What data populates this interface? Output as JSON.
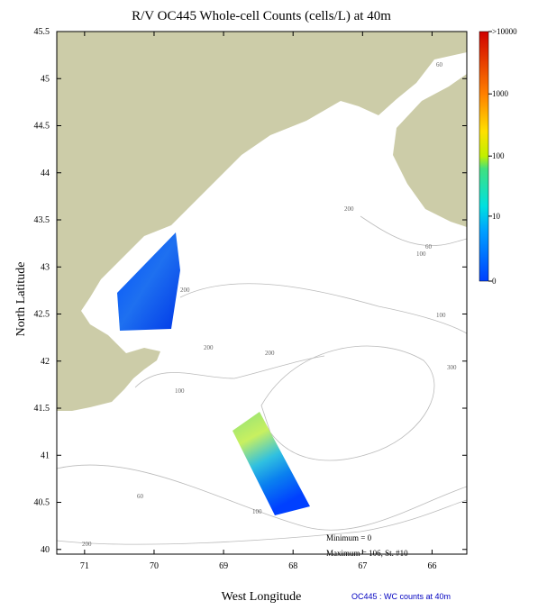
{
  "chart_data": {
    "type": "map",
    "title": "R/V OC445 Whole-cell Counts (cells/L) at 40m",
    "x_label": "West Longitude",
    "y_label": "North Latitude",
    "xlim": [
      71.4,
      65.5
    ],
    "xticks": [
      71,
      70,
      69,
      68,
      67,
      66
    ],
    "ylim": [
      39.95,
      45.5
    ],
    "yticks": [
      40,
      40.5,
      41,
      41.5,
      42,
      42.5,
      43,
      43.5,
      44,
      44.5,
      45,
      45.5
    ],
    "colorbar": {
      "lim": [
        0,
        10000
      ],
      "log": true,
      "ticks": [
        {
          "value": 10000,
          "label": ">10000"
        },
        1000,
        100,
        10,
        0
      ]
    },
    "minimum_text": "Minimum = 0",
    "maximum_text": "Maximum = 106, St. #10",
    "footer": "OC445 : WC counts at 40m",
    "contour_labels": [
      "60",
      "200",
      "60",
      "100",
      "200",
      "100",
      "200",
      "200",
      "300",
      "100",
      "100",
      "60",
      "200"
    ]
  }
}
